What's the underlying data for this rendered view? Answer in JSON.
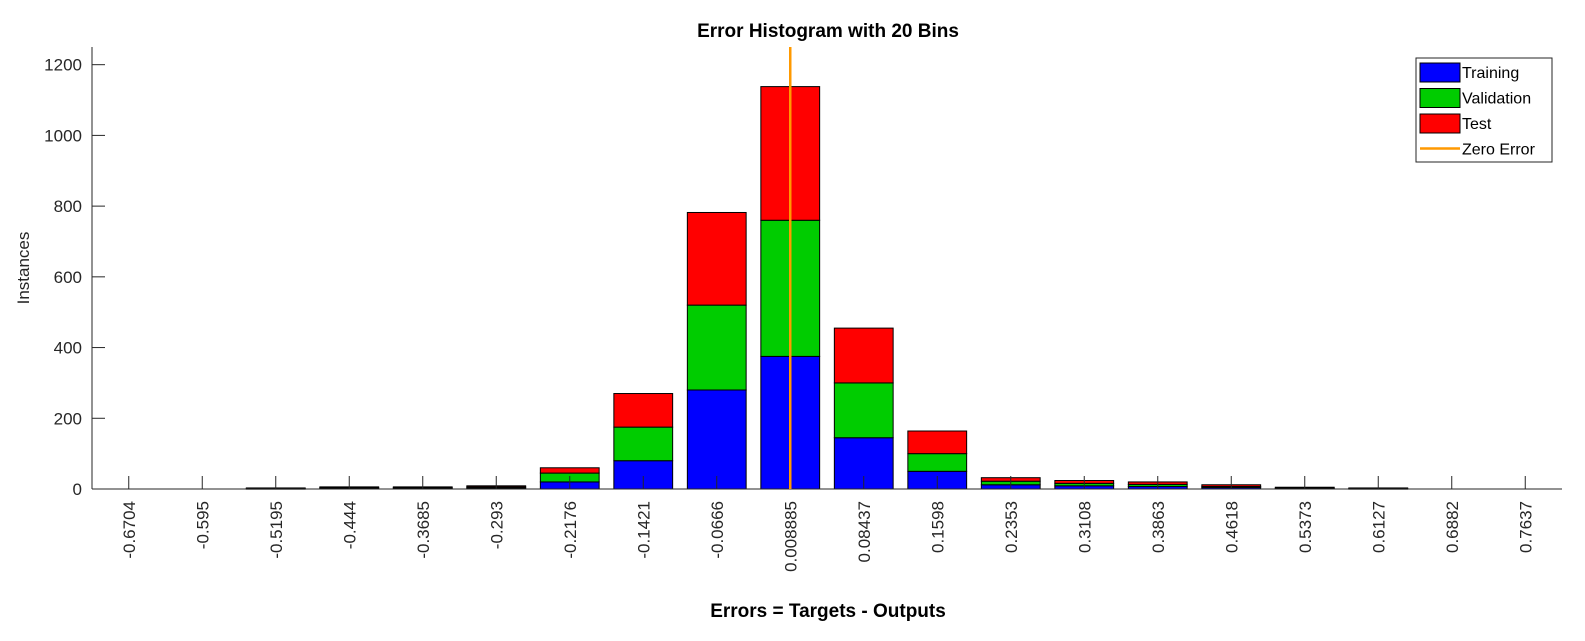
{
  "chart_data": {
    "type": "bar",
    "stacked": true,
    "title": "Error Histogram with 20 Bins",
    "xlabel": "Errors = Targets - Outputs",
    "ylabel": "Instances",
    "categories": [
      "-0.6704",
      "-0.595",
      "-0.5195",
      "-0.444",
      "-0.3685",
      "-0.293",
      "-0.2176",
      "-0.1421",
      "-0.0666",
      "0.008885",
      "0.08437",
      "0.1598",
      "0.2353",
      "0.3108",
      "0.3863",
      "0.4618",
      "0.5373",
      "0.6127",
      "0.6882",
      "0.7637"
    ],
    "series": [
      {
        "name": "Training",
        "color": "#0000ff",
        "values": [
          0,
          0,
          1,
          2,
          2,
          3,
          20,
          80,
          280,
          375,
          145,
          50,
          12,
          9,
          7,
          4,
          2,
          1,
          0,
          0
        ]
      },
      {
        "name": "Validation",
        "color": "#00cc00",
        "values": [
          0,
          0,
          1,
          2,
          2,
          3,
          25,
          95,
          240,
          385,
          155,
          50,
          10,
          7,
          6,
          3,
          1,
          1,
          0,
          0
        ]
      },
      {
        "name": "Test",
        "color": "#ff0000",
        "values": [
          0,
          0,
          1,
          2,
          2,
          3,
          15,
          95,
          262,
          378,
          155,
          64,
          10,
          8,
          7,
          5,
          2,
          1,
          0,
          0
        ]
      }
    ],
    "zero_error": {
      "name": "Zero Error",
      "color": "#ff9900",
      "x": "0.008885"
    },
    "ylim": [
      0,
      1250
    ],
    "yticks": [
      0,
      200,
      400,
      600,
      800,
      1000,
      1200
    ],
    "grid": false,
    "legend_position": "top-right"
  }
}
